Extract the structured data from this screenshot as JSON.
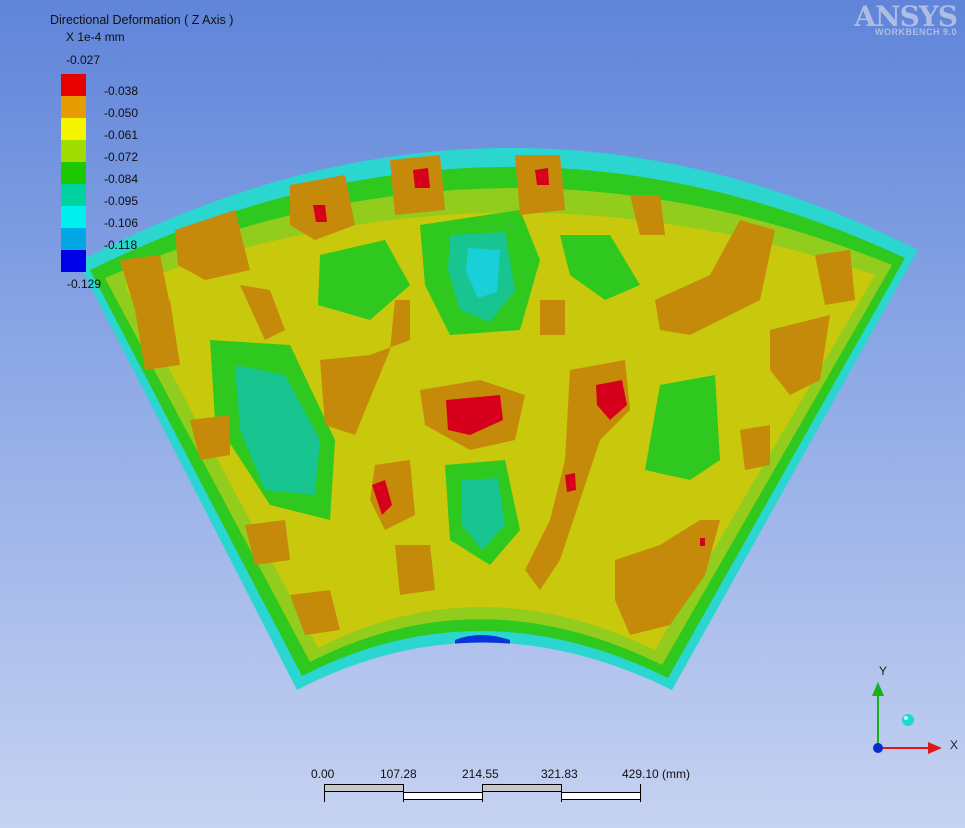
{
  "logo": {
    "text": "ANSYS",
    "subtitle": "WORKBENCH 9.0"
  },
  "legend": {
    "title": "Directional Deformation ( Z Axis )",
    "units": "X 1e-4 mm",
    "max_label": "-0.027",
    "entries": [
      {
        "label": "-0.038",
        "color": "#e60000"
      },
      {
        "label": "-0.050",
        "color": "#e69b00"
      },
      {
        "label": "-0.061",
        "color": "#f5f500"
      },
      {
        "label": "-0.072",
        "color": "#a0dc00"
      },
      {
        "label": "-0.084",
        "color": "#1ec800"
      },
      {
        "label": "-0.095",
        "color": "#00d2a0"
      },
      {
        "label": "-0.106",
        "color": "#00f0f0"
      },
      {
        "label": "-0.118",
        "color": "#00a8e6"
      },
      {
        "label": "-0.129",
        "color": "#0000e6"
      }
    ]
  },
  "scale": {
    "ticks": [
      "0.00",
      "107.28",
      "214.55",
      "321.83",
      "429.10 (mm)"
    ]
  },
  "triad": {
    "x_label": "X",
    "y_label": "Y"
  },
  "colors": {
    "red": "#d8001a",
    "orange": "#c88a0a",
    "yellow": "#cacc08",
    "yellowgreen": "#8ec81a",
    "green": "#22c41a",
    "teal": "#1cc28e",
    "cyan": "#1ad0d8",
    "blue": "#0a32d8"
  }
}
